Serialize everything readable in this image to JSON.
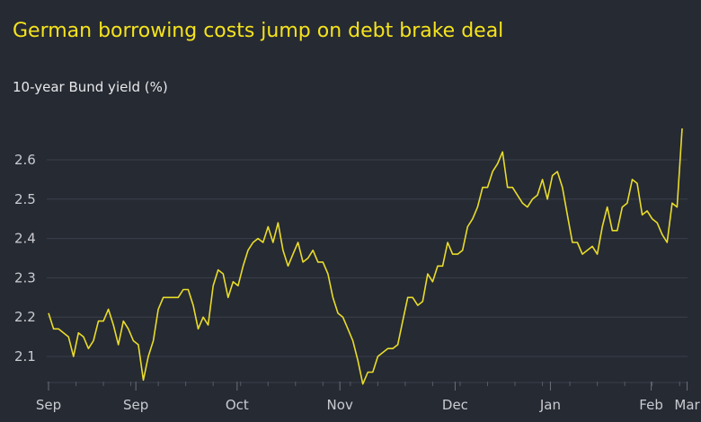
{
  "chart_data": {
    "type": "line",
    "title": "German borrowing costs jump on debt brake deal",
    "subtitle": "10-year Bund yield (%)",
    "xlabel": "",
    "ylabel": "10-year Bund yield (%)",
    "ylim": [
      2.03,
      2.69
    ],
    "yticks": [
      2.1,
      2.2,
      2.3,
      2.4,
      2.5,
      2.6
    ],
    "ytick_labels": [
      "2.1",
      "2.2",
      "2.3",
      "2.4",
      "2.5",
      "2.6"
    ],
    "xtick_labels": [
      {
        "label": "Sep",
        "index": 0
      },
      {
        "label": "Sep",
        "index": 17.5
      },
      {
        "label": "Oct",
        "index": 37.8
      },
      {
        "label": "Nov",
        "index": 58.4
      },
      {
        "label": "Dec",
        "index": 81.5
      },
      {
        "label": "Jan",
        "index": 100.6
      },
      {
        "label": "Feb",
        "index": 120.8
      },
      {
        "label": "Mar",
        "index": 128
      }
    ],
    "grid": true,
    "colors": {
      "line": "#e9dc2a",
      "title": "#f5e31c",
      "background": "#262a33",
      "grid": "#3a3f4a"
    },
    "series": [
      {
        "name": "10-year Bund yield",
        "values": [
          2.21,
          2.17,
          2.17,
          2.16,
          2.15,
          2.1,
          2.16,
          2.15,
          2.12,
          2.14,
          2.19,
          2.19,
          2.22,
          2.18,
          2.13,
          2.19,
          2.17,
          2.14,
          2.13,
          2.04,
          2.1,
          2.14,
          2.22,
          2.25,
          2.25,
          2.25,
          2.25,
          2.27,
          2.27,
          2.23,
          2.17,
          2.2,
          2.18,
          2.28,
          2.32,
          2.31,
          2.25,
          2.29,
          2.28,
          2.33,
          2.37,
          2.39,
          2.4,
          2.39,
          2.43,
          2.39,
          2.44,
          2.37,
          2.33,
          2.36,
          2.39,
          2.34,
          2.35,
          2.37,
          2.34,
          2.34,
          2.31,
          2.25,
          2.21,
          2.2,
          2.17,
          2.14,
          2.09,
          2.03,
          2.06,
          2.06,
          2.1,
          2.11,
          2.12,
          2.12,
          2.13,
          2.19,
          2.25,
          2.25,
          2.23,
          2.24,
          2.31,
          2.29,
          2.33,
          2.33,
          2.39,
          2.36,
          2.36,
          2.37,
          2.43,
          2.45,
          2.48,
          2.53,
          2.53,
          2.57,
          2.59,
          2.62,
          2.53,
          2.53,
          2.51,
          2.49,
          2.48,
          2.5,
          2.51,
          2.55,
          2.5,
          2.56,
          2.57,
          2.53,
          2.46,
          2.39,
          2.39,
          2.36,
          2.37,
          2.38,
          2.36,
          2.43,
          2.48,
          2.42,
          2.42,
          2.48,
          2.49,
          2.55,
          2.54,
          2.46,
          2.47,
          2.45,
          2.44,
          2.41,
          2.39,
          2.49,
          2.48,
          2.68
        ]
      }
    ]
  }
}
